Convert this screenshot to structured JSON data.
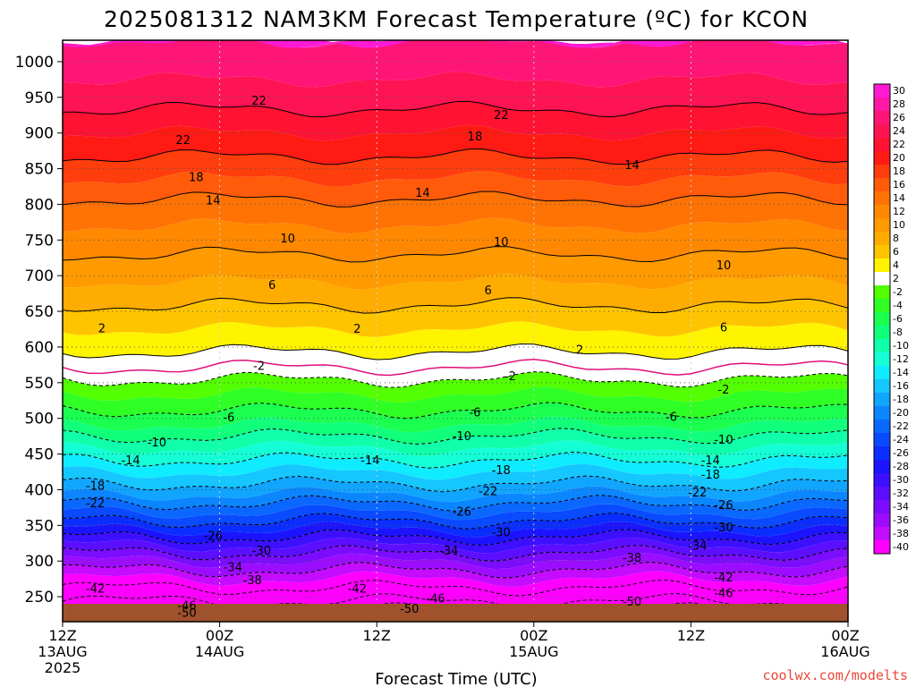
{
  "chart_data": {
    "type": "heatmap",
    "title": "2025081312 NAM3KM Forecast Temperature (ºC) for KCON",
    "xlabel": "Forecast Time (UTC)",
    "ylabel": "",
    "credit": "coolwx.com/modelts",
    "x_ticks": [
      {
        "line1": "12Z",
        "line2": "13AUG",
        "line3": "2025",
        "hours": 0
      },
      {
        "line1": "00Z",
        "line2": "14AUG",
        "line3": "",
        "hours": 12
      },
      {
        "line1": "12Z",
        "line2": "",
        "line3": "",
        "hours": 24
      },
      {
        "line1": "00Z",
        "line2": "15AUG",
        "line3": "",
        "hours": 36
      },
      {
        "line1": "12Z",
        "line2": "",
        "line3": "",
        "hours": 48
      },
      {
        "line1": "00Z",
        "line2": "16AUG",
        "line3": "",
        "hours": 60
      }
    ],
    "y_ticks": [
      "250",
      "300",
      "350",
      "400",
      "450",
      "500",
      "550",
      "600",
      "650",
      "700",
      "750",
      "800",
      "850",
      "900",
      "950",
      "1000"
    ],
    "pressure_levels_hPa": [
      250,
      300,
      350,
      400,
      450,
      500,
      550,
      600,
      650,
      700,
      750,
      800,
      850,
      900,
      950,
      1000
    ],
    "xlim_hours": [
      0,
      60
    ],
    "ylim_hPa": [
      1030,
      215
    ],
    "colorbar_labels": [
      "30",
      "28",
      "26",
      "24",
      "22",
      "20",
      "18",
      "16",
      "14",
      "12",
      "10",
      "8",
      "6",
      "4",
      "2",
      "-2",
      "-4",
      "-6",
      "-8",
      "-10",
      "-12",
      "-14",
      "-16",
      "-18",
      "-20",
      "-22",
      "-24",
      "-26",
      "-28",
      "-30",
      "-32",
      "-34",
      "-36",
      "-38",
      "-40"
    ],
    "colorbar_colors": [
      "#ff1bd3",
      "#ff18a6",
      "#ff1578",
      "#ff1453",
      "#ff1232",
      "#ff1a14",
      "#ff3d0d",
      "#ff5b0a",
      "#ff7305",
      "#ff8800",
      "#ff9a00",
      "#ffac00",
      "#ffc400",
      "#fff400",
      "#ffffff",
      "#53ff00",
      "#30ff25",
      "#1bff50",
      "#12ff7c",
      "#10ffab",
      "#14ffd5",
      "#10ecff",
      "#15c6ff",
      "#10a5ff",
      "#0c86ff",
      "#0a68ff",
      "#0a4bff",
      "#0a2eff",
      "#1c14ff",
      "#3c10ff",
      "#5c0eff",
      "#7c0cff",
      "#9c0cff",
      "#c40cff",
      "#ff00ff"
    ],
    "stops": [
      {
        "p": 215,
        "t": -55
      },
      {
        "p": 250,
        "t": -44
      },
      {
        "p": 300,
        "t": -36
      },
      {
        "p": 350,
        "t": -27
      },
      {
        "p": 400,
        "t": -19
      },
      {
        "p": 450,
        "t": -13
      },
      {
        "p": 500,
        "t": -7
      },
      {
        "p": 550,
        "t": -2.5
      },
      {
        "p": 580,
        "t": 1
      },
      {
        "p": 600,
        "t": 2.5
      },
      {
        "p": 650,
        "t": 5.5
      },
      {
        "p": 700,
        "t": 8.5
      },
      {
        "p": 750,
        "t": 11
      },
      {
        "p": 800,
        "t": 13.5
      },
      {
        "p": 850,
        "t": 17
      },
      {
        "p": 900,
        "t": 20
      },
      {
        "p": 950,
        "t": 23
      },
      {
        "p": 1000,
        "t": 25
      },
      {
        "p": 1030,
        "t": 26
      }
    ],
    "contour_labels": [
      {
        "text": "-50",
        "hours": 9.5,
        "p": 228
      },
      {
        "text": "-46",
        "hours": 9.5,
        "p": 238
      },
      {
        "text": "-42",
        "hours": 2.5,
        "p": 262
      },
      {
        "text": "-50",
        "hours": 26.5,
        "p": 234
      },
      {
        "text": "-42",
        "hours": 22.5,
        "p": 262
      },
      {
        "text": "-46",
        "hours": 28.5,
        "p": 248
      },
      {
        "text": "-50",
        "hours": 43.5,
        "p": 244
      },
      {
        "text": "-46",
        "hours": 50.5,
        "p": 256
      },
      {
        "text": "-42",
        "hours": 50.5,
        "p": 278
      },
      {
        "text": "-38",
        "hours": 14.5,
        "p": 274
      },
      {
        "text": "-34",
        "hours": 13.0,
        "p": 292
      },
      {
        "text": "-30",
        "hours": 15.2,
        "p": 315
      },
      {
        "text": "-26",
        "hours": 11.5,
        "p": 336
      },
      {
        "text": "-34",
        "hours": 29.5,
        "p": 315
      },
      {
        "text": "-38",
        "hours": 43.5,
        "p": 305
      },
      {
        "text": "-30",
        "hours": 33.5,
        "p": 341
      },
      {
        "text": "-34",
        "hours": 48.5,
        "p": 322
      },
      {
        "text": "-30",
        "hours": 50.5,
        "p": 348
      },
      {
        "text": "-26",
        "hours": 30.5,
        "p": 370
      },
      {
        "text": "-26",
        "hours": 50.5,
        "p": 379
      },
      {
        "text": "-22",
        "hours": 2.5,
        "p": 382
      },
      {
        "text": "-18",
        "hours": 2.5,
        "p": 406
      },
      {
        "text": "-22",
        "hours": 32.5,
        "p": 399
      },
      {
        "text": "-22",
        "hours": 48.5,
        "p": 397
      },
      {
        "text": "-18",
        "hours": 33.5,
        "p": 428
      },
      {
        "text": "-18",
        "hours": 49.5,
        "p": 422
      },
      {
        "text": "-14",
        "hours": 5.2,
        "p": 442
      },
      {
        "text": "-14",
        "hours": 23.5,
        "p": 442
      },
      {
        "text": "-14",
        "hours": 49.5,
        "p": 442
      },
      {
        "text": "-10",
        "hours": 7.2,
        "p": 467
      },
      {
        "text": "-10",
        "hours": 30.5,
        "p": 476
      },
      {
        "text": "-10",
        "hours": 50.5,
        "p": 471
      },
      {
        "text": "-6",
        "hours": 12.7,
        "p": 502
      },
      {
        "text": "-6",
        "hours": 31.5,
        "p": 509
      },
      {
        "text": "-6",
        "hours": 46.5,
        "p": 503
      },
      {
        "text": "-2",
        "hours": 15.0,
        "p": 574
      },
      {
        "text": "-2",
        "hours": 34.2,
        "p": 560
      },
      {
        "text": "-2",
        "hours": 50.5,
        "p": 541
      },
      {
        "text": "2",
        "hours": 3.0,
        "p": 627
      },
      {
        "text": "2",
        "hours": 22.5,
        "p": 626
      },
      {
        "text": "2",
        "hours": 39.5,
        "p": 597
      },
      {
        "text": "6",
        "hours": 16.0,
        "p": 688
      },
      {
        "text": "6",
        "hours": 32.5,
        "p": 680
      },
      {
        "text": "6",
        "hours": 50.5,
        "p": 628
      },
      {
        "text": "10",
        "hours": 17.2,
        "p": 753
      },
      {
        "text": "10",
        "hours": 33.5,
        "p": 748
      },
      {
        "text": "10",
        "hours": 50.5,
        "p": 715
      },
      {
        "text": "14",
        "hours": 11.5,
        "p": 806
      },
      {
        "text": "14",
        "hours": 27.5,
        "p": 817
      },
      {
        "text": "14",
        "hours": 43.5,
        "p": 856
      },
      {
        "text": "18",
        "hours": 10.2,
        "p": 839
      },
      {
        "text": "18",
        "hours": 31.5,
        "p": 896
      },
      {
        "text": "22",
        "hours": 9.2,
        "p": 891
      },
      {
        "text": "22",
        "hours": 15.0,
        "p": 946
      },
      {
        "text": "22",
        "hours": 33.5,
        "p": 926
      }
    ]
  }
}
